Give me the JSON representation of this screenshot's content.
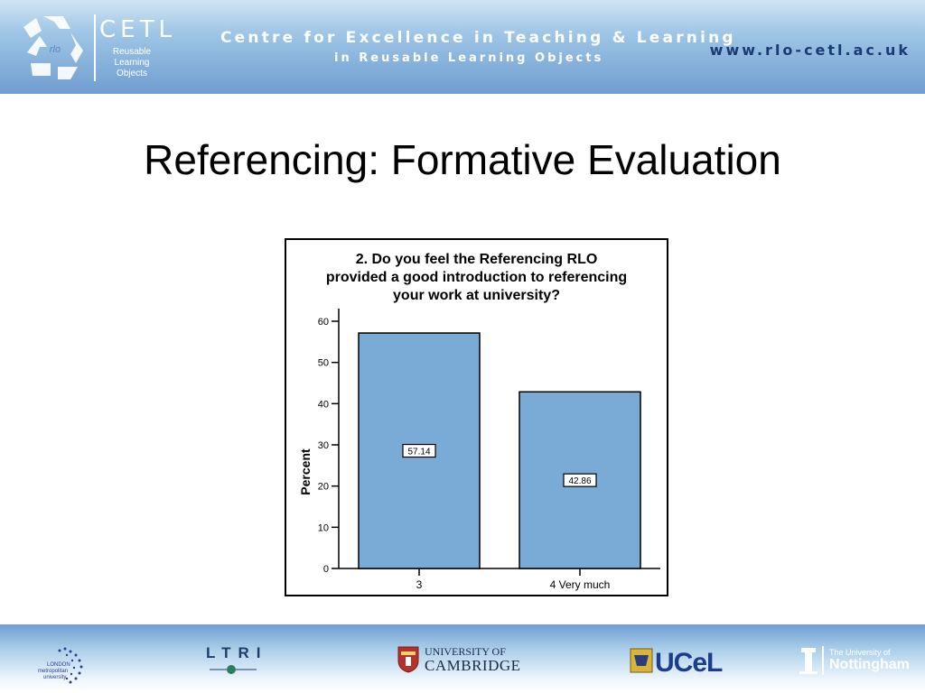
{
  "header": {
    "logo": {
      "rlo": "rlo",
      "cetl": "CETL",
      "subtitle": [
        "Reusable",
        "Learning",
        "Objects"
      ]
    },
    "title": "Centre for Excellence in Teaching & Learning",
    "subtitle": "in Reusable Learning Objects",
    "url": "www.rlo-cetl.ac.uk"
  },
  "slide": {
    "title": "Referencing: Formative Evaluation"
  },
  "chart_data": {
    "type": "bar",
    "title": "2. Do you feel the Referencing RLO provided a good introduction to referencing your work at university?",
    "title_lines": [
      "2. Do you feel the Referencing RLO",
      "provided a good introduction to referencing",
      "your work at university?"
    ],
    "categories": [
      "3",
      "4 Very much"
    ],
    "values": [
      57.14,
      42.86
    ],
    "data_labels": [
      "57.14",
      "42.86"
    ],
    "xlabel": "",
    "ylabel": "Percent",
    "ylim": [
      0,
      60
    ],
    "yticks": [
      "0",
      "10",
      "20",
      "30",
      "40",
      "50",
      "60"
    ],
    "bar_color": "#7aaad6",
    "grid": false,
    "legend": "none"
  },
  "footer": {
    "logos": [
      {
        "name": "London Metropolitan University",
        "lines": [
          "LONDON",
          "metropolitan",
          "university"
        ]
      },
      {
        "name": "LTRI",
        "text": "LTRI"
      },
      {
        "name": "University of Cambridge",
        "line1": "UNIVERSITY OF",
        "line2": "CAMBRIDGE"
      },
      {
        "name": "UCeL",
        "text": "UCeL"
      },
      {
        "name": "The University of Nottingham",
        "line1": "The University of",
        "line2": "Nottingham"
      }
    ]
  }
}
